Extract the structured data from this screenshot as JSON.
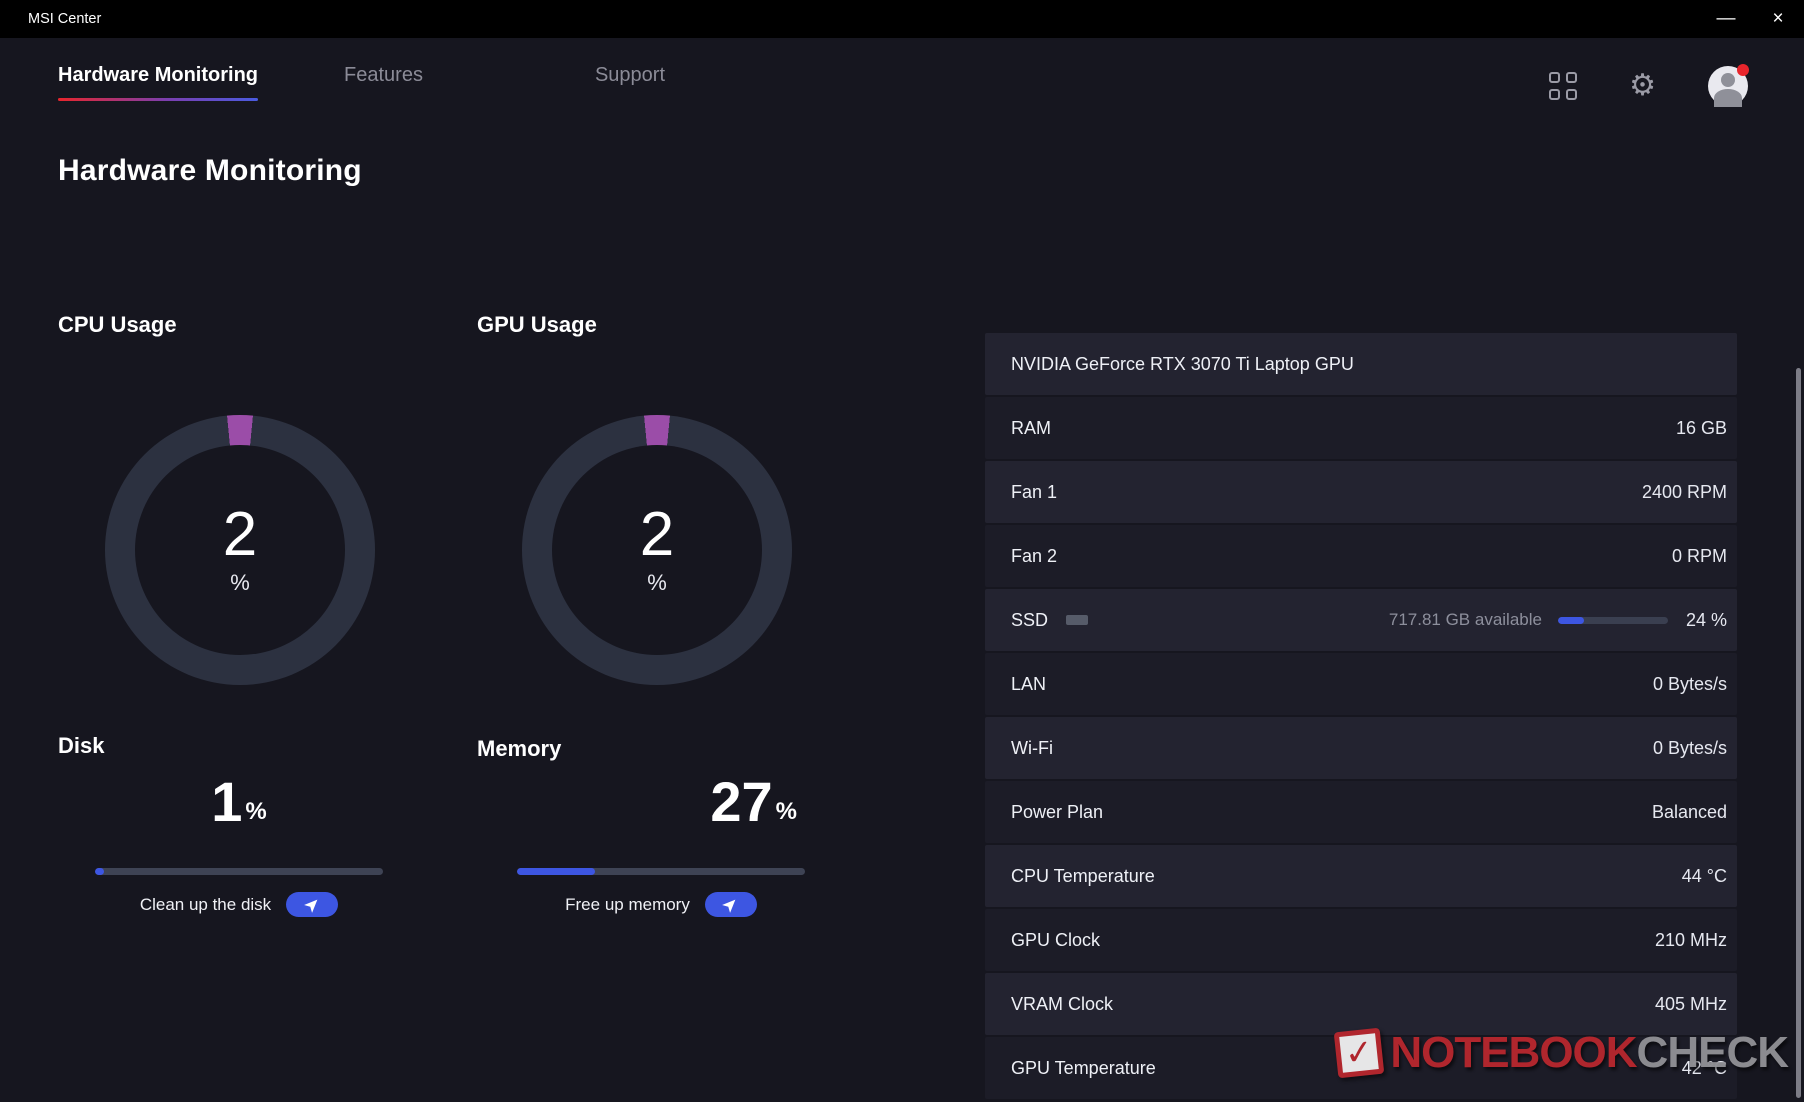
{
  "colors": {
    "accent_blue": "#3d56e2",
    "gauge_tick": "#9b4da8",
    "gauge_ring": "#2c3140",
    "underline_from": "#e8252c",
    "underline_to": "#4a5be0",
    "notification_red": "#e8252c"
  },
  "window": {
    "title": "MSI Center",
    "minimize_glyph": "—",
    "close_glyph": "×"
  },
  "nav": {
    "tabs": [
      {
        "label": "Hardware Monitoring",
        "active": true
      },
      {
        "label": "Features",
        "active": false
      },
      {
        "label": "Support",
        "active": false
      }
    ],
    "icons": [
      "grid-icon",
      "gear-icon",
      "avatar"
    ]
  },
  "page": {
    "title": "Hardware Monitoring"
  },
  "gauges": [
    {
      "label": "CPU Usage",
      "value": 2,
      "unit": "%"
    },
    {
      "label": "GPU Usage",
      "value": 2,
      "unit": "%"
    }
  ],
  "meters": {
    "disk": {
      "label": "Disk",
      "value": 1,
      "unit": "%",
      "action": "Clean up the disk"
    },
    "memory": {
      "label": "Memory",
      "value": 27,
      "unit": "%",
      "action": "Free up memory"
    }
  },
  "stats": {
    "header": "NVIDIA GeForce RTX 3070 Ti Laptop GPU",
    "rows": [
      {
        "label": "RAM",
        "value": "16 GB"
      },
      {
        "label": "Fan 1",
        "value": "2400 RPM"
      },
      {
        "label": "Fan 2",
        "value": "0 RPM"
      },
      {
        "label": "SSD",
        "available": "717.81 GB available",
        "percent": 24,
        "value": "24 %"
      },
      {
        "label": "LAN",
        "value": "0 Bytes/s"
      },
      {
        "label": "Wi-Fi",
        "value": "0 Bytes/s"
      },
      {
        "label": "Power Plan",
        "value": "Balanced"
      },
      {
        "label": "CPU Temperature",
        "value": "44 °C"
      },
      {
        "label": "GPU Clock",
        "value": "210 MHz"
      },
      {
        "label": "VRAM Clock",
        "value": "405 MHz"
      },
      {
        "label": "GPU Temperature",
        "value": "42 °C"
      }
    ]
  },
  "watermark": {
    "left": "NOTEBOOK",
    "right": "CHECK",
    "check_glyph": "✓"
  }
}
